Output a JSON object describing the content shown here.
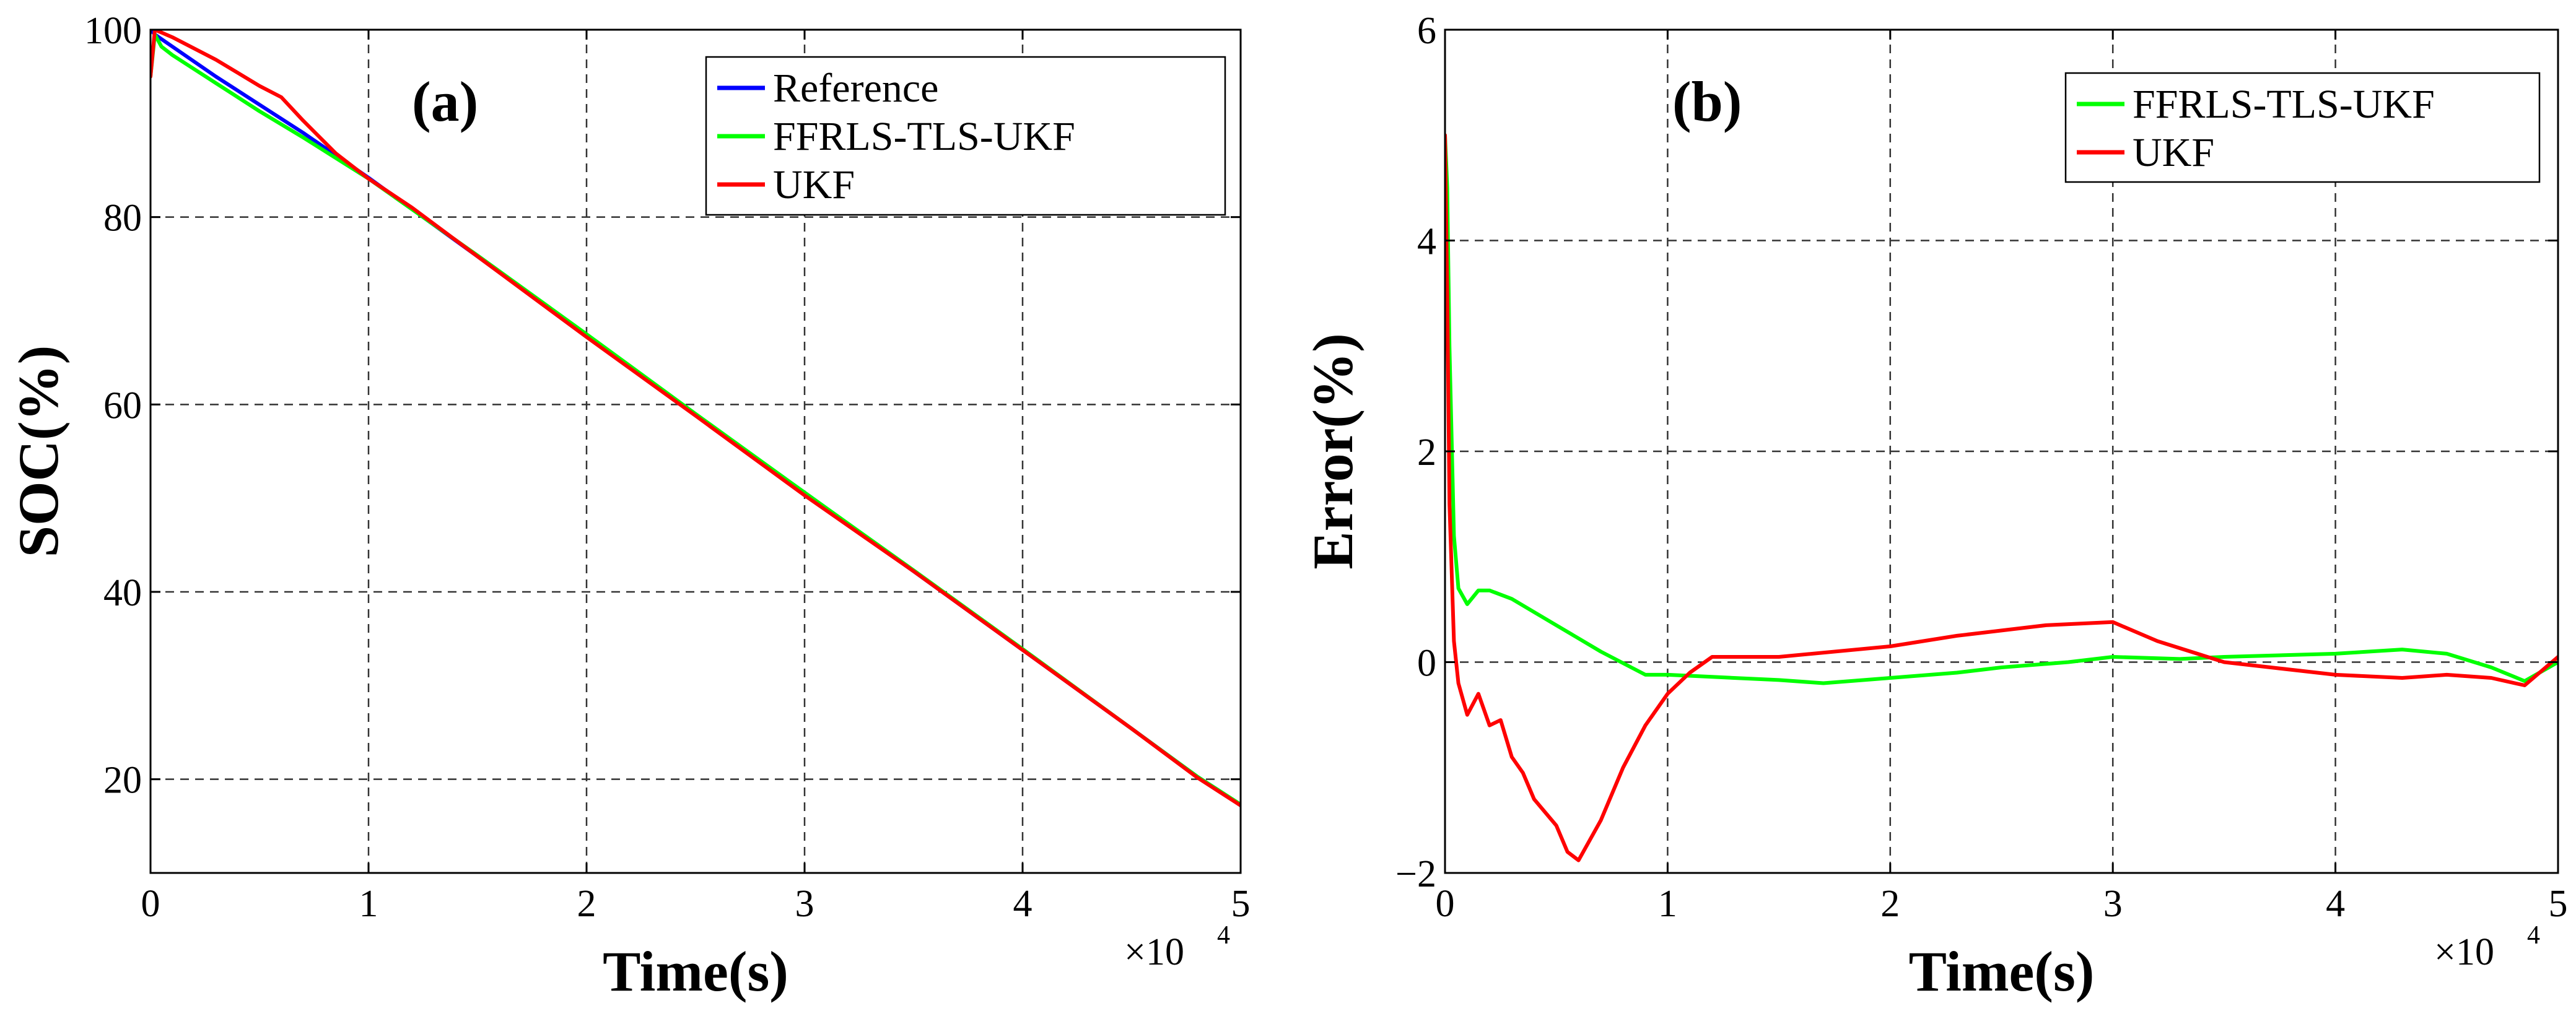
{
  "chart_data": [
    {
      "type": "line",
      "panel_label": "(a)",
      "xlabel": "Time(s)",
      "ylabel": "SOC(%)",
      "x_multiplier": "×10",
      "x_multiplier_exp": "4",
      "xlim": [
        0,
        5
      ],
      "ylim": [
        10,
        100
      ],
      "xticks": [
        0,
        1,
        2,
        3,
        4,
        5
      ],
      "xtick_labels": [
        "0",
        "1",
        "2",
        "3",
        "4",
        "5"
      ],
      "yticks": [
        20,
        40,
        60,
        80,
        100
      ],
      "ytick_labels": [
        "20",
        "40",
        "60",
        "80",
        "100"
      ],
      "grid": true,
      "legend_position": "top-right",
      "series": [
        {
          "name": "Reference",
          "color": "#0000ff",
          "x": [
            0,
            0.02,
            0.05,
            0.1,
            0.3,
            0.5,
            0.7,
            1.0,
            1.5,
            2.0,
            2.5,
            3.0,
            3.5,
            4.0,
            4.5,
            4.8,
            4.9,
            5.0
          ],
          "y": [
            100,
            99.5,
            99,
            98.2,
            95,
            92,
            89,
            84.2,
            75.8,
            67.3,
            58.9,
            50.6,
            42.2,
            33.8,
            25.4,
            20.3,
            18.8,
            17.2
          ]
        },
        {
          "name": "FFRLS-TLS-UKF",
          "color": "#00ff00",
          "x": [
            0,
            0.02,
            0.05,
            0.1,
            0.3,
            0.5,
            0.7,
            1.0,
            1.5,
            2.0,
            2.5,
            3.0,
            3.5,
            4.0,
            4.5,
            4.8,
            4.9,
            5.0
          ],
          "y": [
            95,
            99.5,
            98.2,
            97.3,
            94.3,
            91.3,
            88.5,
            84.1,
            75.9,
            67.5,
            59,
            50.6,
            42.3,
            33.9,
            25.4,
            20.3,
            18.8,
            17.3
          ]
        },
        {
          "name": "UKF",
          "color": "#ff0000",
          "x": [
            0,
            0.02,
            0.05,
            0.1,
            0.3,
            0.5,
            0.6,
            0.7,
            0.85,
            1.0,
            1.2,
            1.5,
            2.0,
            2.5,
            3.0,
            3.5,
            4.0,
            4.5,
            4.8,
            4.9,
            5.0
          ],
          "y": [
            95,
            100,
            99.7,
            99.2,
            96.8,
            94,
            92.8,
            90.3,
            86.8,
            84.1,
            81,
            75.8,
            67.2,
            58.8,
            50.3,
            42.2,
            33.8,
            25.4,
            20.2,
            18.7,
            17.2
          ]
        }
      ]
    },
    {
      "type": "line",
      "panel_label": "(b)",
      "xlabel": "Time(s)",
      "ylabel": "Error(%)",
      "x_multiplier": "×10",
      "x_multiplier_exp": "4",
      "xlim": [
        0,
        5
      ],
      "ylim": [
        -2,
        6
      ],
      "xticks": [
        0,
        1,
        2,
        3,
        4,
        5
      ],
      "xtick_labels": [
        "0",
        "1",
        "2",
        "3",
        "4",
        "5"
      ],
      "yticks": [
        -2,
        0,
        2,
        4,
        6
      ],
      "ytick_labels": [
        "−2",
        "0",
        "2",
        "4",
        "6"
      ],
      "grid": true,
      "legend_position": "top-right",
      "series": [
        {
          "name": "FFRLS-TLS-UKF",
          "color": "#00ff00",
          "x": [
            0,
            0.01,
            0.02,
            0.04,
            0.06,
            0.1,
            0.15,
            0.2,
            0.3,
            0.5,
            0.7,
            0.9,
            1.0,
            1.2,
            1.5,
            1.7,
            2.0,
            2.3,
            2.5,
            2.8,
            3.0,
            3.3,
            3.5,
            4.0,
            4.3,
            4.5,
            4.7,
            4.85,
            5.0
          ],
          "y": [
            5.0,
            4.5,
            3.0,
            1.2,
            0.7,
            0.55,
            0.68,
            0.68,
            0.6,
            0.35,
            0.1,
            -0.12,
            -0.12,
            -0.14,
            -0.17,
            -0.2,
            -0.15,
            -0.1,
            -0.05,
            0.0,
            0.05,
            0.03,
            0.05,
            0.08,
            0.12,
            0.08,
            -0.05,
            -0.18,
            0.0
          ]
        },
        {
          "name": "UKF",
          "color": "#ff0000",
          "x": [
            0,
            0.01,
            0.02,
            0.04,
            0.06,
            0.1,
            0.15,
            0.2,
            0.25,
            0.3,
            0.35,
            0.4,
            0.5,
            0.55,
            0.6,
            0.7,
            0.8,
            0.9,
            1.0,
            1.1,
            1.2,
            1.5,
            2.0,
            2.3,
            2.5,
            2.7,
            3.0,
            3.2,
            3.5,
            4.0,
            4.3,
            4.5,
            4.7,
            4.85,
            5.0
          ],
          "y": [
            5.0,
            3.5,
            1.5,
            0.2,
            -0.2,
            -0.5,
            -0.3,
            -0.6,
            -0.55,
            -0.9,
            -1.05,
            -1.3,
            -1.55,
            -1.8,
            -1.88,
            -1.5,
            -1.0,
            -0.6,
            -0.3,
            -0.1,
            0.05,
            0.05,
            0.15,
            0.25,
            0.3,
            0.35,
            0.38,
            0.2,
            0.0,
            -0.12,
            -0.15,
            -0.12,
            -0.15,
            -0.22,
            0.05
          ]
        }
      ]
    }
  ]
}
